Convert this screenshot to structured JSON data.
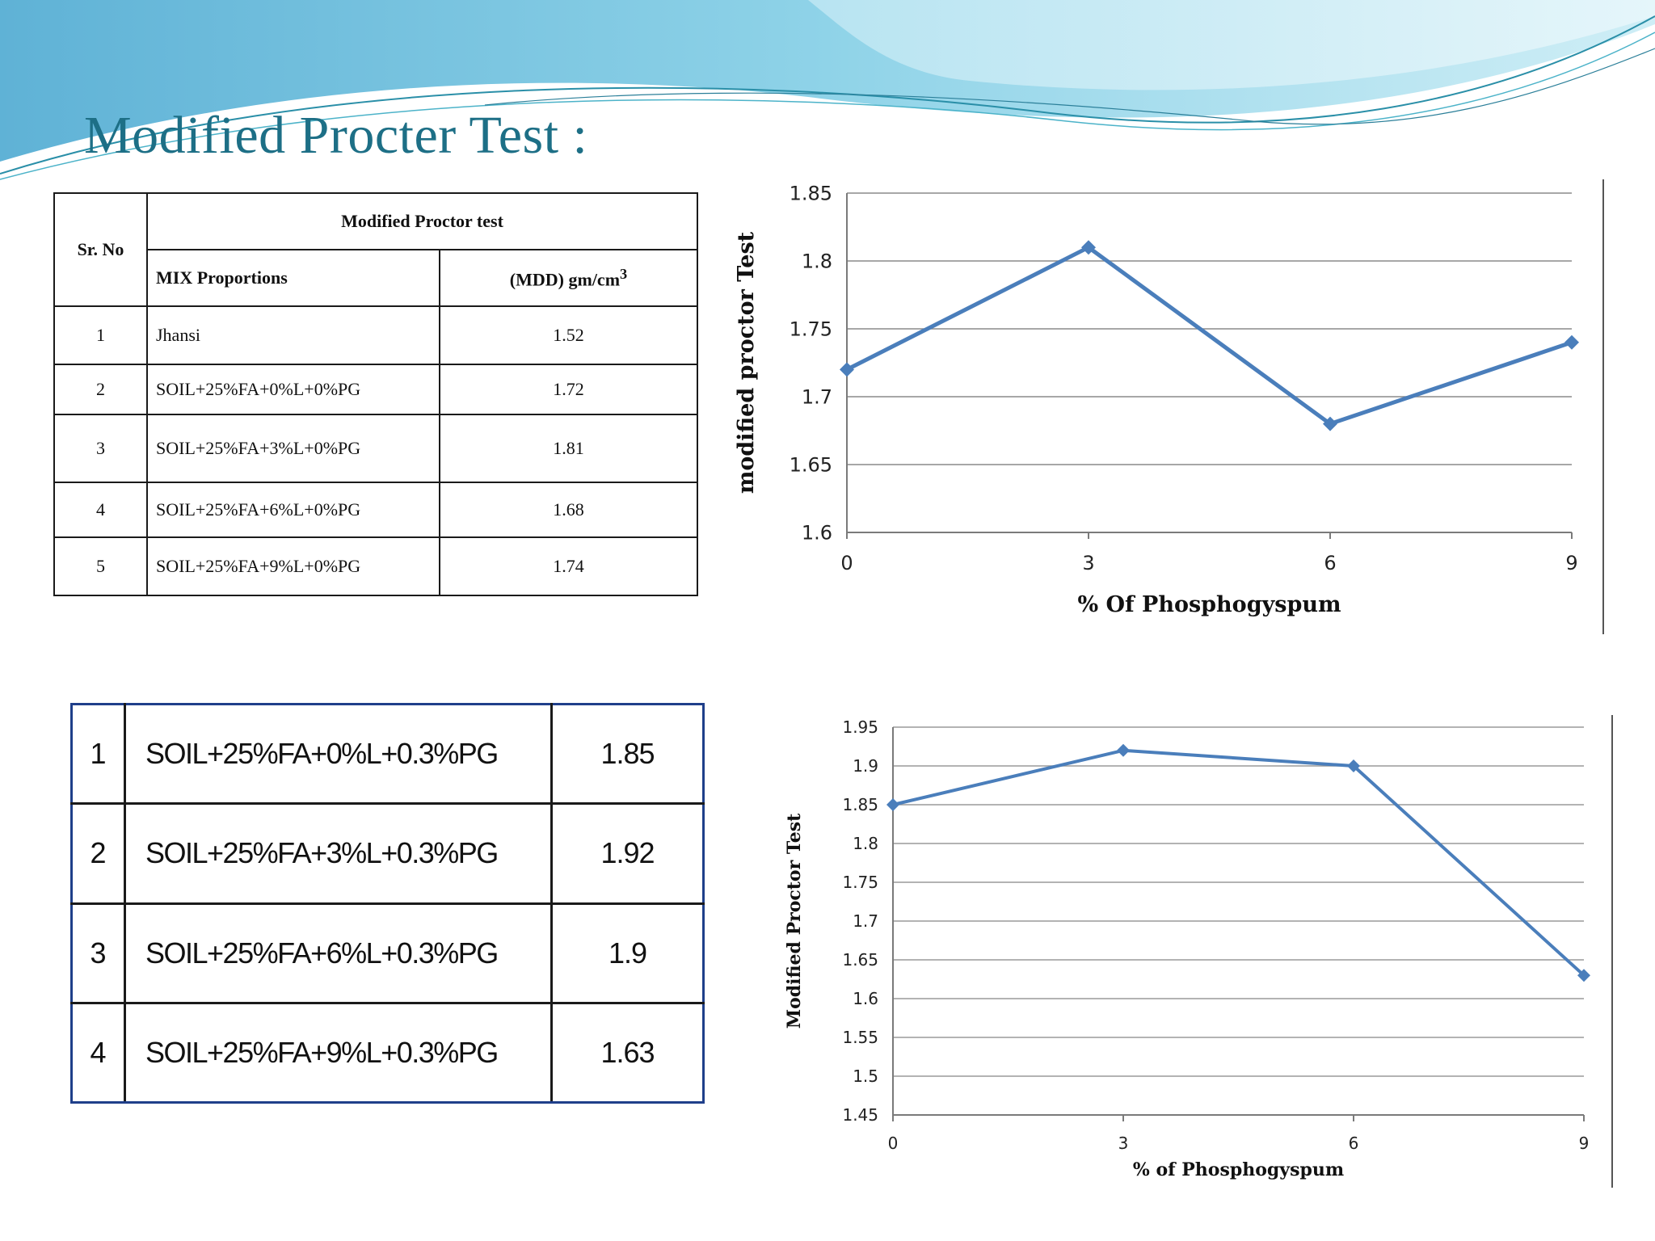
{
  "slide": {
    "title": "Modified Procter Test :"
  },
  "table1": {
    "header_srno": "Sr. No",
    "header_group": "Modified Proctor test",
    "header_mix": "MIX Proportions",
    "header_mdd": "(MDD) gm/cm",
    "header_mdd_sup": "3",
    "rows": [
      {
        "no": "1",
        "mix": "Jhansi",
        "mdd": "1.52"
      },
      {
        "no": "2",
        "mix": "SOIL+25%FA+0%L+0%PG",
        "mdd": "1.72"
      },
      {
        "no": "3",
        "mix": "SOIL+25%FA+3%L+0%PG",
        "mdd": "1.81"
      },
      {
        "no": "4",
        "mix": "SOIL+25%FA+6%L+0%PG",
        "mdd": "1.68"
      },
      {
        "no": "5",
        "mix": "SOIL+25%FA+9%L+0%PG",
        "mdd": "1.74"
      }
    ]
  },
  "table2": {
    "rows": [
      {
        "no": "1",
        "mix": "SOIL+25%FA+0%L+0.3%PG",
        "mdd": "1.85"
      },
      {
        "no": "2",
        "mix": "SOIL+25%FA+3%L+0.3%PG",
        "mdd": "1.92"
      },
      {
        "no": "3",
        "mix": "SOIL+25%FA+6%L+0.3%PG",
        "mdd": "1.9"
      },
      {
        "no": "4",
        "mix": "SOIL+25%FA+9%L+0.3%PG",
        "mdd": "1.63"
      }
    ]
  },
  "chart_data": [
    {
      "type": "line",
      "x": [
        0,
        3,
        6,
        9
      ],
      "values": [
        1.72,
        1.81,
        1.68,
        1.74
      ],
      "xticks": [
        "0",
        "3",
        "6",
        "9"
      ],
      "yticks": [
        "1.6",
        "1.65",
        "1.7",
        "1.75",
        "1.8",
        "1.85"
      ],
      "ylim": [
        1.6,
        1.85
      ],
      "xlabel": "% Of Phosphogyspum",
      "ylabel": "modified proctor Test",
      "grid": "horizontal",
      "marker": "diamond",
      "color": "#4a7ebb",
      "gridcolor": "#8a8a8a"
    },
    {
      "type": "line",
      "x": [
        0,
        3,
        6,
        9
      ],
      "values": [
        1.85,
        1.92,
        1.9,
        1.63
      ],
      "xticks": [
        "0",
        "3",
        "6",
        "9"
      ],
      "yticks": [
        "1.45",
        "1.5",
        "1.55",
        "1.6",
        "1.65",
        "1.7",
        "1.75",
        "1.8",
        "1.85",
        "1.9",
        "1.95"
      ],
      "ylim": [
        1.45,
        1.95
      ],
      "xlabel": "% of Phosphogyspum",
      "ylabel": "Modified Proctor Test",
      "grid": "horizontal",
      "marker": "diamond",
      "color": "#4a7ebb",
      "gridcolor": "#9a9a9a"
    }
  ]
}
